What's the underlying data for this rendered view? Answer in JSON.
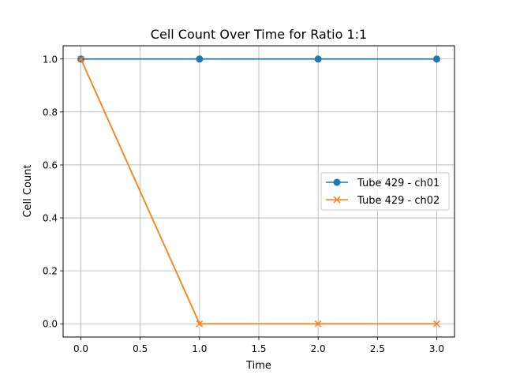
{
  "chart_data": {
    "type": "line",
    "title": "Cell Count Over Time for Ratio 1:1",
    "xlabel": "Time",
    "ylabel": "Cell Count",
    "xlim": [
      -0.15,
      3.15
    ],
    "ylim": [
      -0.05,
      1.05
    ],
    "x": [
      0,
      1,
      2,
      3
    ],
    "xticks": [
      0.0,
      0.5,
      1.0,
      1.5,
      2.0,
      2.5,
      3.0
    ],
    "xtick_labels": [
      "0.0",
      "0.5",
      "1.0",
      "1.5",
      "2.0",
      "2.5",
      "3.0"
    ],
    "yticks": [
      0.0,
      0.2,
      0.4,
      0.6,
      0.8,
      1.0
    ],
    "ytick_labels": [
      "0.0",
      "0.2",
      "0.4",
      "0.6",
      "0.8",
      "1.0"
    ],
    "grid": true,
    "legend_position": "center-right",
    "series": [
      {
        "name": "Tube 429 - ch01",
        "values": [
          1,
          1,
          1,
          1
        ],
        "color": "#1f77b4",
        "marker": "circle"
      },
      {
        "name": "Tube 429 - ch02",
        "values": [
          1,
          0,
          0,
          0
        ],
        "color": "#ff7f0e",
        "marker": "x"
      }
    ]
  }
}
